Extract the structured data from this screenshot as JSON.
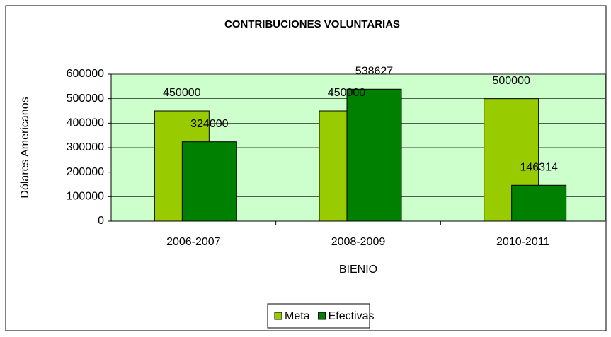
{
  "chart_data": {
    "type": "bar",
    "title": "CONTRIBUCIONES VOLUNTARIAS",
    "x_label": "BIENIO",
    "y_label": "Dólares Americanos",
    "categories": [
      "2006-2007",
      "2008-2009",
      "2010-2011"
    ],
    "series": [
      {
        "name": "Meta",
        "color": "#99cc00",
        "values": [
          450000,
          450000,
          500000
        ]
      },
      {
        "name": "Efectivas",
        "color": "#008000",
        "values": [
          324000,
          538627,
          146314
        ]
      }
    ],
    "ylim": [
      0,
      600000
    ],
    "yticks": [
      0,
      100000,
      200000,
      300000,
      400000,
      500000,
      600000
    ],
    "grid": true,
    "plot_background": "#ccffcc",
    "legend": "bottom"
  }
}
